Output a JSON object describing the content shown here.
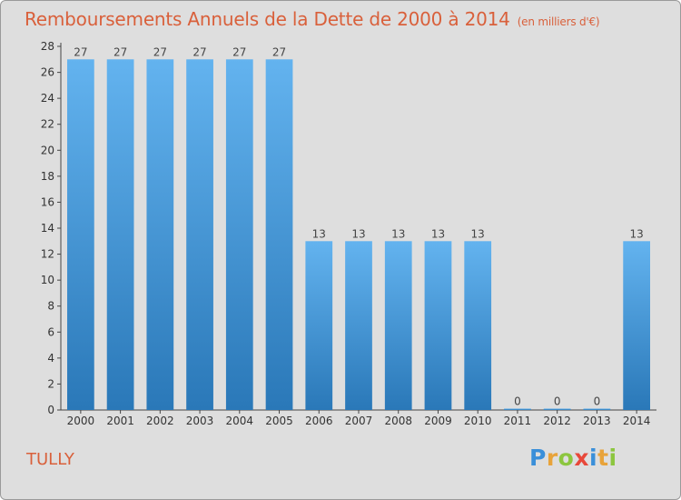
{
  "title": "Remboursements Annuels de la Dette de 2000 à 2014",
  "unit_note": "(en milliers d'€)",
  "commune": "TULLY",
  "logo": {
    "letters": [
      "P",
      "r",
      "o",
      "x",
      "i",
      "t",
      "i"
    ],
    "colors": [
      "#3a8fd9",
      "#e8a33a",
      "#8cc63f",
      "#e8483a",
      "#3a8fd9",
      "#e8a33a",
      "#8cc63f"
    ]
  },
  "colors": {
    "bar_top": "#63b3ef",
    "bar_bottom": "#2a78b8",
    "title": "#d9603b"
  },
  "chart_data": {
    "type": "bar",
    "title": "Remboursements Annuels de la Dette de 2000 à 2014",
    "xlabel": "",
    "ylabel": "",
    "categories": [
      "2000",
      "2001",
      "2002",
      "2003",
      "2004",
      "2005",
      "2006",
      "2007",
      "2008",
      "2009",
      "2010",
      "2011",
      "2012",
      "2013",
      "2014"
    ],
    "values": [
      27,
      27,
      27,
      27,
      27,
      27,
      13,
      13,
      13,
      13,
      13,
      0,
      0,
      0,
      13
    ],
    "ylim": [
      0,
      28
    ],
    "yticks": [
      0,
      2,
      4,
      6,
      8,
      10,
      12,
      14,
      16,
      18,
      20,
      22,
      24,
      26,
      28
    ],
    "grid": false,
    "legend": "none"
  }
}
